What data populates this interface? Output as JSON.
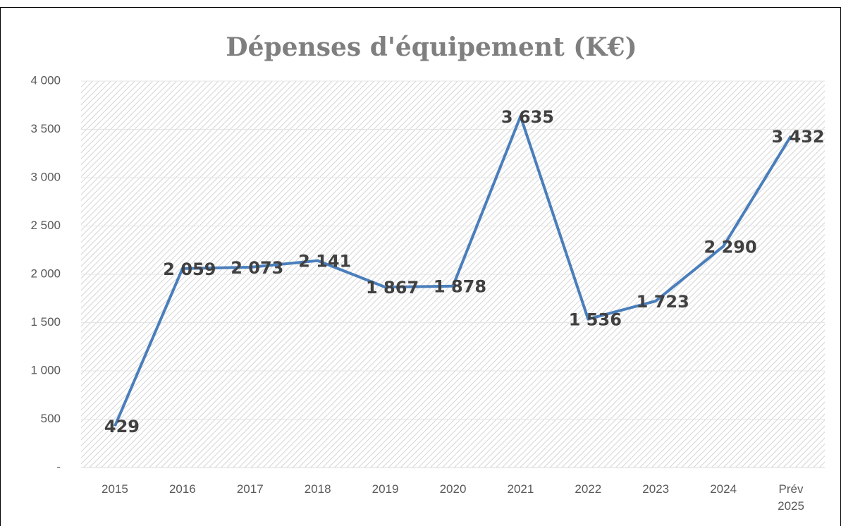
{
  "chart_data": {
    "type": "line",
    "title": "Dépenses d'équipement (K€)",
    "categories": [
      "2015",
      "2016",
      "2017",
      "2018",
      "2019",
      "2020",
      "2021",
      "2022",
      "2023",
      "2024",
      "Prév 2025"
    ],
    "values": [
      429,
      2059,
      2073,
      2141,
      1867,
      1878,
      3635,
      1536,
      1723,
      2290,
      3432
    ],
    "value_labels": [
      "429",
      "2 059",
      "2 073",
      "2 141",
      "1 867",
      "1 878",
      "3 635",
      "1 536",
      "1 723",
      "2 290",
      "3 432"
    ],
    "color": "#4a7ebb",
    "ylim": [
      0,
      4000
    ],
    "yticks": [
      {
        "value": 0,
        "label": "-"
      },
      500,
      {
        "value": 1000,
        "label": "1 000"
      },
      {
        "value": 1500,
        "label": "1 500"
      },
      {
        "value": 2000,
        "label": "2 000"
      },
      {
        "value": 2500,
        "label": "2 500"
      },
      {
        "value": 3000,
        "label": "3 000"
      },
      {
        "value": 3500,
        "label": "3 500"
      },
      {
        "value": 4000,
        "label": "4 000"
      }
    ],
    "grid": true
  }
}
